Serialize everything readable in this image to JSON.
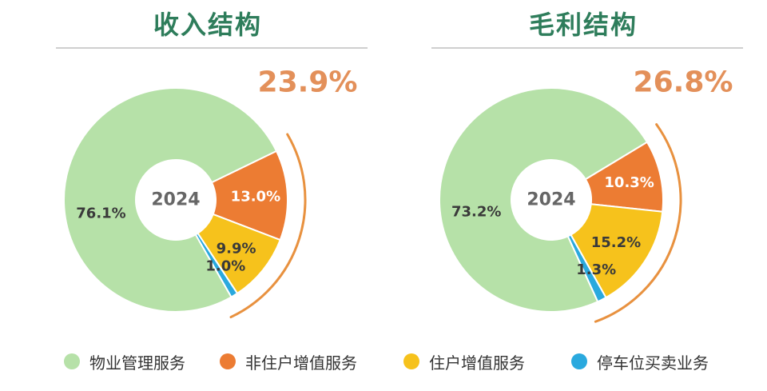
{
  "colors": {
    "title": "#2e7d5b",
    "property_management": "#b6e1a8",
    "non_owner_value_added": "#ec7c33",
    "owner_value_added": "#f6c21c",
    "parking": "#2aa9de",
    "bracket": "#e8913f",
    "total_text": "#e3905a",
    "label_light": "#ffffff",
    "label_dark": "#3a3a3a",
    "center_text": "#666666"
  },
  "legend": [
    {
      "name": "物业管理服务",
      "color": "#b6e1a8"
    },
    {
      "name": "非住户增值服务",
      "color": "#ec7c33"
    },
    {
      "name": "住户增值服务",
      "color": "#f6c21c"
    },
    {
      "name": "停车位买卖业务",
      "color": "#2aa9de"
    }
  ],
  "chart_data": [
    {
      "type": "pie",
      "title": "收入结构",
      "center_label": "2024",
      "categories": [
        "物业管理服务",
        "非住户增值服务",
        "住户增值服务",
        "停车位买卖业务"
      ],
      "values": [
        76.1,
        13.0,
        9.9,
        1.0
      ],
      "labels": [
        "76.1%",
        "13.0%",
        "9.9%",
        "1.0%"
      ],
      "bracket_total": "23.9%",
      "legend": "bottom"
    },
    {
      "type": "pie",
      "title": "毛利结构",
      "center_label": "2024",
      "categories": [
        "物业管理服务",
        "非住户增值服务",
        "住户增值服务",
        "停车位买卖业务"
      ],
      "values": [
        73.2,
        10.3,
        15.2,
        1.3
      ],
      "labels": [
        "73.2%",
        "10.3%",
        "15.2%",
        "1.3%"
      ],
      "bracket_total": "26.8%",
      "legend": "bottom"
    }
  ]
}
